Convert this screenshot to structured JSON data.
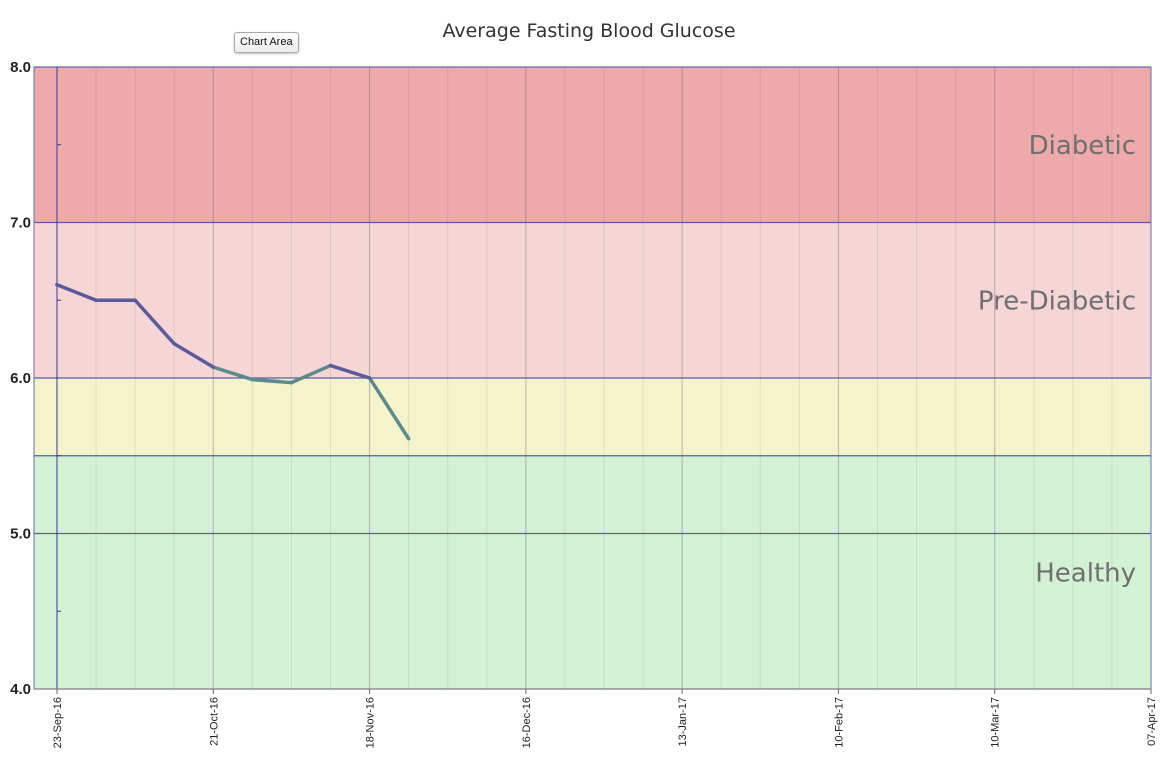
{
  "tooltip": {
    "text": "Chart Area"
  },
  "chart_data": {
    "type": "line",
    "title": "Average Fasting Blood Glucose",
    "xlabel": "",
    "ylabel": "",
    "xlim": [
      "2016-09-23",
      "2017-04-07"
    ],
    "ylim": [
      4.0,
      8.0
    ],
    "y_ticks": [
      "4.0",
      "5.0",
      "6.0",
      "7.0",
      "8.0"
    ],
    "x_ticks": [
      {
        "date": "2016-09-23",
        "label": "23-Sep-16"
      },
      {
        "date": "2016-10-21",
        "label": "21-Oct-16"
      },
      {
        "date": "2016-11-18",
        "label": "18-Nov-16"
      },
      {
        "date": "2016-12-16",
        "label": "16-Dec-16"
      },
      {
        "date": "2017-01-13",
        "label": "13-Jan-17"
      },
      {
        "date": "2017-02-10",
        "label": "10-Feb-17"
      },
      {
        "date": "2017-03-10",
        "label": "10-Mar-17"
      },
      {
        "date": "2017-04-07",
        "label": "07-Apr-17"
      }
    ],
    "grid": true,
    "bands": [
      {
        "label": "Diabetic",
        "from": 7.0,
        "to": 8.0,
        "color": "#eeaaab"
      },
      {
        "label": "Pre-Diabetic",
        "from": 6.0,
        "to": 7.0,
        "color": "#f5d5d6"
      },
      {
        "label": "",
        "from": 5.5,
        "to": 6.0,
        "color": "#f3f3cc"
      },
      {
        "label": "Healthy",
        "from": 4.0,
        "to": 5.5,
        "color": "#d3f1d5"
      }
    ],
    "series": [
      {
        "color_above": "#5c5a9a",
        "color_below": "#5f8a8b",
        "points": [
          {
            "x": "2016-09-23",
            "y": 6.6
          },
          {
            "x": "2016-09-30",
            "y": 6.5
          },
          {
            "x": "2016-10-07",
            "y": 6.5
          },
          {
            "x": "2016-10-14",
            "y": 6.22
          },
          {
            "x": "2016-10-21",
            "y": 6.07
          },
          {
            "x": "2016-10-28",
            "y": 5.99
          },
          {
            "x": "2016-11-04",
            "y": 5.97
          },
          {
            "x": "2016-11-11",
            "y": 6.08
          },
          {
            "x": "2016-11-18",
            "y": 6.0
          },
          {
            "x": "2016-11-25",
            "y": 5.61
          }
        ]
      }
    ]
  }
}
